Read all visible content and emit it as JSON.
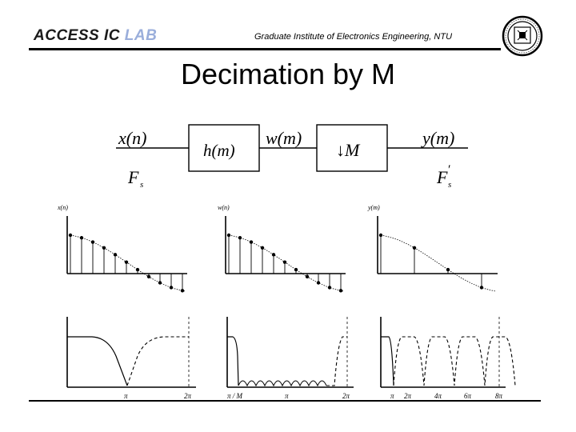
{
  "header": {
    "brand_part1": "ACCESS IC ",
    "brand_part2": "LAB",
    "brand_color1": "#1a1a1a",
    "brand_color2": "#9aaedb",
    "institute": "Graduate Institute of Electronics Engineering, NTU",
    "logo_icon": "university-seal-icon"
  },
  "slide": {
    "title": "Decimation by M"
  },
  "block_diagram": {
    "input_label": "x(n)",
    "filter_label": "h(m)",
    "intermediate_label": "w(m)",
    "downsampler_label": "↓M",
    "output_label": "y(m)",
    "input_rate": "F",
    "input_rate_sub": "s",
    "output_rate": "F",
    "output_rate_sub": "s",
    "output_rate_prime": "′"
  },
  "time_plots": [
    {
      "label": "x(n)"
    },
    {
      "label": "w(n)"
    },
    {
      "label": "y(m)"
    }
  ],
  "freq_plots": [
    {
      "ticks": [
        "π",
        "2π"
      ]
    },
    {
      "ticks": [
        "π / M",
        "π",
        "2π"
      ]
    },
    {
      "ticks": [
        "π",
        "2π",
        "4π",
        "6π",
        "8π"
      ]
    }
  ]
}
